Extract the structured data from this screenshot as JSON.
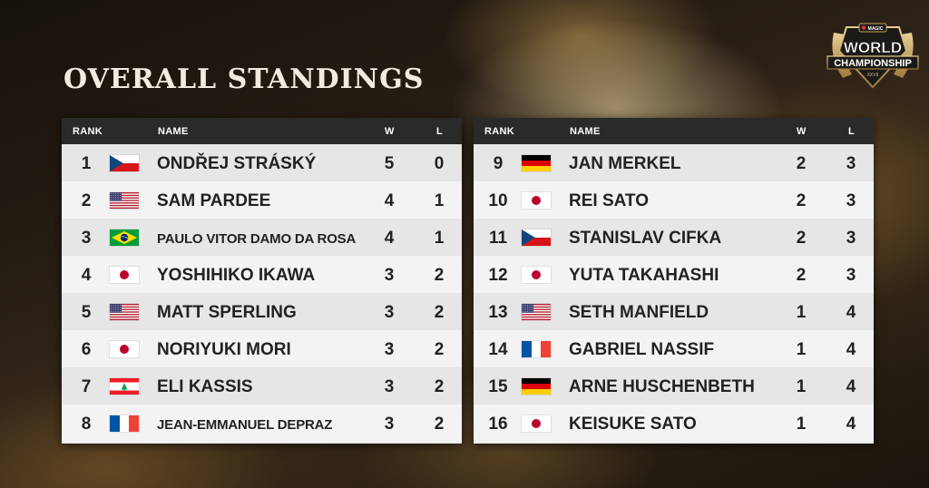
{
  "title": "OVERALL STANDINGS",
  "logo": {
    "line1": "WORLD",
    "line2": "CHAMPIONSHIP",
    "badge": "MAGIC",
    "sub": "XXVII"
  },
  "headers": {
    "rank": "RANK",
    "name": "NAME",
    "w": "W",
    "l": "L"
  },
  "colors": {
    "header_bg": "#2a2a2a",
    "row_light": "#f3f3f3",
    "row_dark": "#e6e6e6",
    "title": "#f2ece0",
    "accent_gold": "#c9a560"
  },
  "left": [
    {
      "rank": "1",
      "flag": "czech-flag-icon",
      "name": "ONDŘEJ STRÁSKÝ",
      "w": "5",
      "l": "0"
    },
    {
      "rank": "2",
      "flag": "usa-flag-icon",
      "name": "SAM PARDEE",
      "w": "4",
      "l": "1"
    },
    {
      "rank": "3",
      "flag": "brazil-flag-icon",
      "name": "PAULO VITOR DAMO DA ROSA",
      "w": "4",
      "l": "1"
    },
    {
      "rank": "4",
      "flag": "japan-flag-icon",
      "name": "YOSHIHIKO IKAWA",
      "w": "3",
      "l": "2"
    },
    {
      "rank": "5",
      "flag": "usa-flag-icon",
      "name": "MATT SPERLING",
      "w": "3",
      "l": "2"
    },
    {
      "rank": "6",
      "flag": "japan-flag-icon",
      "name": "NORIYUKI MORI",
      "w": "3",
      "l": "2"
    },
    {
      "rank": "7",
      "flag": "lebanon-flag-icon",
      "name": "ELI KASSIS",
      "w": "3",
      "l": "2"
    },
    {
      "rank": "8",
      "flag": "france-flag-icon",
      "name": "JEAN-EMMANUEL DEPRAZ",
      "w": "3",
      "l": "2"
    }
  ],
  "right": [
    {
      "rank": "9",
      "flag": "germany-flag-icon",
      "name": "JAN MERKEL",
      "w": "2",
      "l": "3"
    },
    {
      "rank": "10",
      "flag": "japan-flag-icon",
      "name": "REI SATO",
      "w": "2",
      "l": "3"
    },
    {
      "rank": "11",
      "flag": "czech-flag-icon",
      "name": "STANISLAV CIFKA",
      "w": "2",
      "l": "3"
    },
    {
      "rank": "12",
      "flag": "japan-flag-icon",
      "name": "YUTA TAKAHASHI",
      "w": "2",
      "l": "3"
    },
    {
      "rank": "13",
      "flag": "usa-flag-icon",
      "name": "SETH MANFIELD",
      "w": "1",
      "l": "4"
    },
    {
      "rank": "14",
      "flag": "france-flag-icon",
      "name": "GABRIEL NASSIF",
      "w": "1",
      "l": "4"
    },
    {
      "rank": "15",
      "flag": "germany-flag-icon",
      "name": "ARNE HUSCHENBETH",
      "w": "1",
      "l": "4"
    },
    {
      "rank": "16",
      "flag": "japan-flag-icon",
      "name": "KEISUKE SATO",
      "w": "1",
      "l": "4"
    }
  ]
}
